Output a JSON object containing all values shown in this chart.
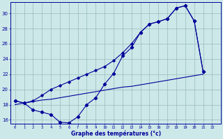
{
  "temp_main": [
    18.5,
    18.2,
    17.3,
    17.0,
    16.7,
    15.7,
    15.6,
    16.4,
    18.0,
    18.9,
    20.7,
    22.1,
    24.4,
    25.5,
    27.5,
    28.6,
    28.9,
    29.3,
    30.7,
    31.0,
    29.0,
    22.3
  ],
  "temp_upper": [
    18.5,
    18.2,
    18.5,
    19.2,
    20.0,
    20.5,
    21.0,
    21.5,
    22.0,
    22.5,
    23.0,
    23.8,
    24.8,
    26.0,
    27.5,
    28.6,
    28.9,
    29.3,
    30.7,
    31.0,
    29.0,
    22.3
  ],
  "temp_linear": [
    18.0,
    18.2,
    18.4,
    18.6,
    18.7,
    18.9,
    19.1,
    19.3,
    19.5,
    19.7,
    19.9,
    20.1,
    20.3,
    20.4,
    20.6,
    20.8,
    21.0,
    21.2,
    21.4,
    21.6,
    21.8,
    22.0
  ],
  "bg_color": "#cce8e8",
  "line_color": "#000099",
  "grid_color": "#99bbbb",
  "xlabel": "Graphe des températures (°c)",
  "ylim": [
    15.5,
    31.5
  ],
  "xlim": [
    -0.5,
    23
  ]
}
